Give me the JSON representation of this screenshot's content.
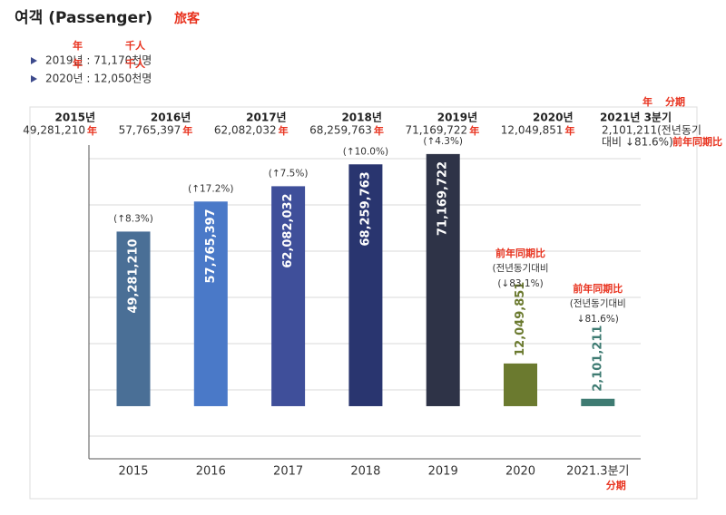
{
  "title": "여객 (Passenger)",
  "title_note": "旅客",
  "summary": [
    {
      "text": "2019년 : 71,170천명",
      "notes": [
        "年",
        "千人"
      ]
    },
    {
      "text": "2020년 : 12,050천명",
      "notes": [
        "年",
        "千人"
      ]
    }
  ],
  "chart_data": {
    "type": "bar",
    "headers": [
      {
        "year": "2015년",
        "value": "49,281,210",
        "note": "年"
      },
      {
        "year": "2016년",
        "value": "57,765,397",
        "note": "年"
      },
      {
        "year": "2017년",
        "value": "62,082,032",
        "note": "年"
      },
      {
        "year": "2018년",
        "value": "68,259,763",
        "note": "年"
      },
      {
        "year": "2019년",
        "value": "71,169,722",
        "note": "年"
      },
      {
        "year": "2020년",
        "value": "12,049,851",
        "note": "年"
      },
      {
        "year": "2021년 3분기",
        "year_notes": [
          "年",
          "分期"
        ],
        "value": "2,101,211(전년동기",
        "value_cont": "대비 ↓81.6%)",
        "note": "前年同期比"
      }
    ],
    "categories": [
      "2015",
      "2016",
      "2017",
      "2018",
      "2019",
      "2020",
      "2021.3분기"
    ],
    "x_note": "分期",
    "values": [
      49281210,
      57765397,
      62082032,
      68259763,
      71169722,
      12049851,
      2101211
    ],
    "value_labels": [
      "49,281,210",
      "57,765,397",
      "62,082,032",
      "68,259,763",
      "71,169,722",
      "12,049,851",
      "2,101,211"
    ],
    "changes": [
      "(↑8.3%)",
      "(↑17.2%)",
      "(↑7.5%)",
      "(↑10.0%)",
      "(↑4.3%)",
      "(↓83.1%)",
      "↓81.6%)"
    ],
    "change_prefix": "(전년동기대비",
    "change_note": "前年同期比",
    "colors": [
      "#4a6f96",
      "#4a79c8",
      "#3f4f9a",
      "#29356f",
      "#2e3347",
      "#6b7a2f",
      "#3e7b72"
    ],
    "ylim": [
      -14850000,
      73700000
    ]
  }
}
